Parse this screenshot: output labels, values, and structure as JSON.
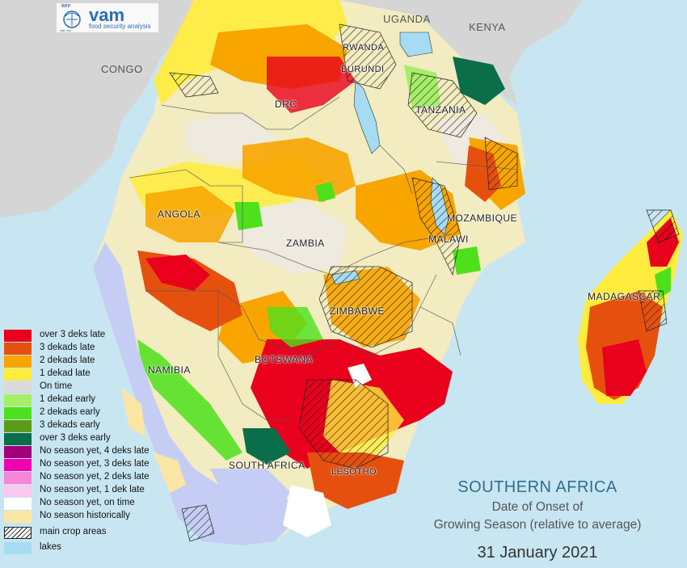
{
  "logo": {
    "name": "vam",
    "subtitle": "food security analysis",
    "org": "WFP",
    "org_sub": "wfp.org"
  },
  "labels": {
    "uganda": "UGANDA",
    "kenya": "KENYA",
    "congo": "CONGO",
    "rwanda": "RWANDA",
    "burundi": "BURUNDI",
    "drc": "DRC",
    "tanzania": "TANZANIA",
    "angola": "ANGOLA",
    "zambia": "ZAMBIA",
    "mozambique": "MOZAMBIQUE",
    "malawi": "MALAWI",
    "madagascar": "MADAGASCAR",
    "zimbabwe": "ZIMBABWE",
    "botswana": "BOTSWANA",
    "namibia": "NAMIBIA",
    "south_africa": "SOUTH AFRICA",
    "lesotho": "LESOTHO"
  },
  "legend": [
    {
      "label": "over 3 deks late",
      "color": "#e8001c"
    },
    {
      "label": "3 dekads late",
      "color": "#e6500f"
    },
    {
      "label": "2 dekads late",
      "color": "#f8a500"
    },
    {
      "label": "1 dekad late",
      "color": "#ffec3c"
    },
    {
      "label": "On time",
      "color": "#dadada"
    },
    {
      "label": "1 dekad early",
      "color": "#a6ee6a"
    },
    {
      "label": "2 dekads early",
      "color": "#4ee11b"
    },
    {
      "label": "3 dekads early",
      "color": "#5a9c1a"
    },
    {
      "label": "over 3 deks early",
      "color": "#0a6e4a"
    },
    {
      "label": "No season yet, 4 deks late",
      "color": "#a0007a"
    },
    {
      "label": "No season yet, 3 deks late",
      "color": "#f000b0"
    },
    {
      "label": "No season yet, 2 deks late",
      "color": "#f586d8"
    },
    {
      "label": "No season yet, 1 dek late",
      "color": "#f8c8ee"
    },
    {
      "label": "No season yet, on time",
      "color": "#ffffff"
    },
    {
      "label": "No season historically",
      "color": "#fbe6a6"
    },
    {
      "label": "main crop areas",
      "color": "hatch"
    },
    {
      "label": "lakes",
      "color": "#a6dcf2"
    }
  ],
  "title": {
    "main": "SOUTHERN AFRICA",
    "line1": "Date of Onset of",
    "line2": "Growing Season (relative to average)",
    "date": "31 January 2021"
  }
}
